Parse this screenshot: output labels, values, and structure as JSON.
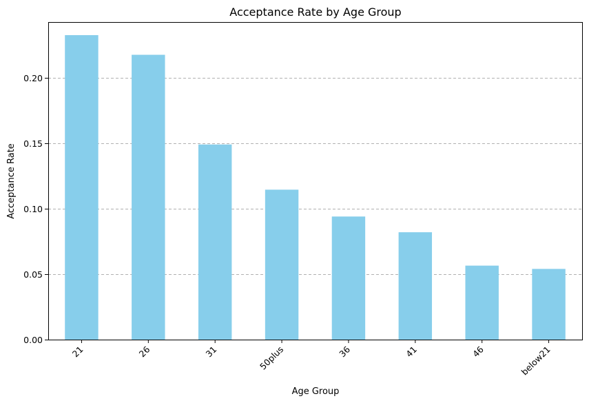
{
  "chart_data": {
    "type": "bar",
    "title": "Acceptance Rate by Age Group",
    "xlabel": "Age Group",
    "ylabel": "Acceptance Rate",
    "categories": [
      "21",
      "26",
      "31",
      "50plus",
      "36",
      "41",
      "46",
      "below21"
    ],
    "values": [
      0.2325,
      0.2175,
      0.149,
      0.1145,
      0.094,
      0.082,
      0.0565,
      0.054
    ],
    "ylim": [
      0,
      0.2425
    ],
    "yticks": [
      0.0,
      0.05,
      0.1,
      0.15,
      0.2
    ],
    "ytick_labels": [
      "0.00",
      "0.05",
      "0.10",
      "0.15",
      "0.20"
    ],
    "grid": "y, dashed",
    "legend": "none",
    "bar_color": "#87ceeb",
    "grid_color": "#b0b0b0"
  }
}
